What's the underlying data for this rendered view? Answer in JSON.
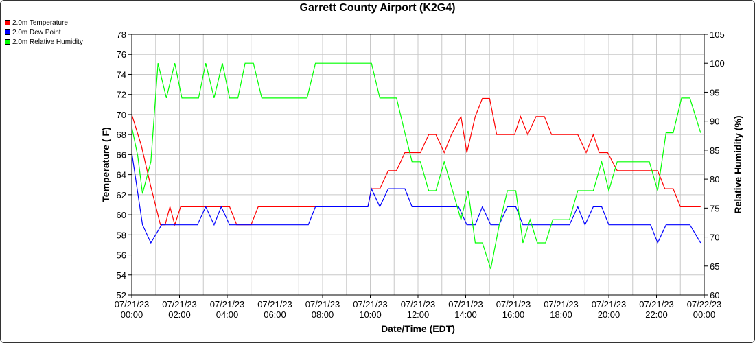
{
  "chart_data": {
    "type": "line",
    "title": "Garrett County Airport (K2G4)",
    "xlabel": "Date/Time (EDT)",
    "ylabel": "Temperature ( F)",
    "y2label": "Relative Humidity (%)",
    "xlim_hours": [
      0,
      24
    ],
    "ylim": [
      52,
      78
    ],
    "ylim2": [
      60,
      105
    ],
    "yticks": [
      "52",
      "54",
      "56",
      "58",
      "60",
      "62",
      "64",
      "66",
      "68",
      "70",
      "72",
      "74",
      "76",
      "78"
    ],
    "y2ticks": [
      "60",
      "65",
      "70",
      "75",
      "80",
      "85",
      "90",
      "95",
      "100",
      "105"
    ],
    "xtick_dates": [
      "07/21/23",
      "07/21/23",
      "07/21/23",
      "07/21/23",
      "07/21/23",
      "07/21/23",
      "07/21/23",
      "07/21/23",
      "07/21/23",
      "07/21/23",
      "07/21/23",
      "07/21/23",
      "07/22/23"
    ],
    "xtick_times": [
      "00:00",
      "02:00",
      "04:00",
      "06:00",
      "08:00",
      "10:00",
      "12:00",
      "14:00",
      "16:00",
      "18:00",
      "20:00",
      "22:00",
      "00:00"
    ],
    "grid": true,
    "legend_position": "top-left",
    "series": [
      {
        "name": "2.0m Temperature",
        "color": "#ff0000",
        "axis": "left",
        "points": [
          [
            0,
            70
          ],
          [
            0.4,
            66.9
          ],
          [
            0.8,
            62.8
          ],
          [
            1.2,
            59
          ],
          [
            1.4,
            59
          ],
          [
            1.6,
            60.8
          ],
          [
            1.8,
            59
          ],
          [
            2.05,
            60.8
          ],
          [
            4.1,
            60.8
          ],
          [
            4.4,
            59
          ],
          [
            5.0,
            59
          ],
          [
            5.3,
            60.8
          ],
          [
            7.35,
            60.8
          ],
          [
            7.7,
            60.8
          ],
          [
            9.9,
            60.8
          ],
          [
            10.05,
            62.6
          ],
          [
            10.4,
            62.6
          ],
          [
            10.75,
            64.4
          ],
          [
            11.1,
            64.4
          ],
          [
            11.45,
            66.2
          ],
          [
            12.1,
            66.2
          ],
          [
            12.45,
            68
          ],
          [
            12.75,
            68
          ],
          [
            13.1,
            66.2
          ],
          [
            13.4,
            68
          ],
          [
            13.8,
            69.8
          ],
          [
            14.05,
            66.2
          ],
          [
            14.4,
            69.8
          ],
          [
            14.7,
            71.6
          ],
          [
            15.0,
            71.6
          ],
          [
            15.3,
            68
          ],
          [
            15.8,
            68
          ],
          [
            16.05,
            68
          ],
          [
            16.3,
            69.8
          ],
          [
            16.6,
            68
          ],
          [
            16.95,
            69.8
          ],
          [
            17.3,
            69.8
          ],
          [
            17.6,
            68
          ],
          [
            18.7,
            68
          ],
          [
            19.05,
            66.2
          ],
          [
            19.35,
            68
          ],
          [
            19.6,
            66.2
          ],
          [
            19.95,
            66.2
          ],
          [
            20.35,
            64.4
          ],
          [
            21.95,
            64.4
          ],
          [
            22.05,
            64.4
          ],
          [
            22.35,
            62.6
          ],
          [
            22.7,
            62.6
          ],
          [
            23.0,
            60.8
          ],
          [
            23.85,
            60.8
          ]
        ]
      },
      {
        "name": "2.0m Dew Point",
        "color": "#0000ff",
        "axis": "left",
        "points": [
          [
            0,
            66.2
          ],
          [
            0.45,
            59
          ],
          [
            0.8,
            57.2
          ],
          [
            1.25,
            59
          ],
          [
            2.05,
            59
          ],
          [
            2.75,
            59
          ],
          [
            3.1,
            60.8
          ],
          [
            3.45,
            59
          ],
          [
            3.75,
            60.8
          ],
          [
            4.1,
            59
          ],
          [
            4.4,
            59
          ],
          [
            7.1,
            59
          ],
          [
            7.4,
            59
          ],
          [
            7.7,
            60.8
          ],
          [
            9.9,
            60.8
          ],
          [
            10.05,
            62.6
          ],
          [
            10.4,
            60.8
          ],
          [
            10.75,
            62.6
          ],
          [
            11.45,
            62.6
          ],
          [
            11.75,
            60.8
          ],
          [
            13.7,
            60.8
          ],
          [
            14.05,
            59
          ],
          [
            14.4,
            59
          ],
          [
            14.7,
            60.8
          ],
          [
            15.05,
            59
          ],
          [
            15.4,
            59
          ],
          [
            15.75,
            60.8
          ],
          [
            16.1,
            60.8
          ],
          [
            16.4,
            59
          ],
          [
            18.35,
            59
          ],
          [
            18.7,
            60.8
          ],
          [
            19.0,
            59
          ],
          [
            19.35,
            60.8
          ],
          [
            19.7,
            60.8
          ],
          [
            20.0,
            59
          ],
          [
            21.75,
            59
          ],
          [
            22.05,
            57.2
          ],
          [
            22.4,
            59
          ],
          [
            23.4,
            59
          ],
          [
            23.85,
            57.2
          ]
        ]
      },
      {
        "name": "2.0m Relative Humidity",
        "color": "#00ff00",
        "axis": "right",
        "points": [
          [
            0,
            89
          ],
          [
            0.25,
            84
          ],
          [
            0.45,
            77.5
          ],
          [
            0.8,
            83
          ],
          [
            1.1,
            100
          ],
          [
            1.45,
            94
          ],
          [
            1.8,
            100
          ],
          [
            2.1,
            94
          ],
          [
            2.8,
            94
          ],
          [
            3.1,
            100
          ],
          [
            3.45,
            94
          ],
          [
            3.8,
            100
          ],
          [
            4.1,
            94
          ],
          [
            4.45,
            94
          ],
          [
            4.75,
            100
          ],
          [
            5.1,
            100
          ],
          [
            5.45,
            94
          ],
          [
            7.1,
            94
          ],
          [
            7.35,
            94
          ],
          [
            7.7,
            100
          ],
          [
            10.05,
            100
          ],
          [
            10.4,
            94
          ],
          [
            11.1,
            94
          ],
          [
            11.45,
            88
          ],
          [
            11.75,
            83
          ],
          [
            12.1,
            83
          ],
          [
            12.45,
            78
          ],
          [
            12.75,
            78
          ],
          [
            13.1,
            83
          ],
          [
            13.45,
            78
          ],
          [
            13.8,
            73
          ],
          [
            14.1,
            78
          ],
          [
            14.4,
            69
          ],
          [
            14.7,
            69
          ],
          [
            15.05,
            64.5
          ],
          [
            15.4,
            72
          ],
          [
            15.75,
            78
          ],
          [
            16.1,
            78
          ],
          [
            16.4,
            69
          ],
          [
            16.7,
            73
          ],
          [
            17.0,
            69
          ],
          [
            17.35,
            69
          ],
          [
            17.65,
            73
          ],
          [
            18.35,
            73
          ],
          [
            18.7,
            78
          ],
          [
            19.35,
            78
          ],
          [
            19.7,
            83
          ],
          [
            20.0,
            78
          ],
          [
            20.35,
            83
          ],
          [
            21.7,
            83
          ],
          [
            22.05,
            78
          ],
          [
            22.4,
            88
          ],
          [
            22.7,
            88
          ],
          [
            23.05,
            94
          ],
          [
            23.4,
            94
          ],
          [
            23.85,
            88
          ]
        ]
      }
    ]
  }
}
